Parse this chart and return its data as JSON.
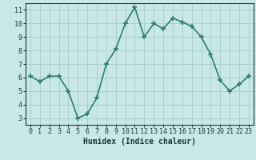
{
  "x": [
    0,
    1,
    2,
    3,
    4,
    5,
    6,
    7,
    8,
    9,
    10,
    11,
    12,
    13,
    14,
    15,
    16,
    17,
    18,
    19,
    20,
    21,
    22,
    23
  ],
  "y": [
    6.1,
    5.7,
    6.1,
    6.1,
    5.0,
    3.0,
    3.3,
    4.5,
    7.0,
    8.1,
    10.0,
    11.2,
    9.0,
    10.0,
    9.6,
    10.4,
    10.1,
    9.8,
    9.0,
    7.7,
    5.8,
    5.0,
    5.5,
    6.1
  ],
  "line_color": "#2e7d6e",
  "marker": "+",
  "bg_color": "#c8e8e8",
  "grid_color": "#aacece",
  "xlabel": "Humidex (Indice chaleur)",
  "ylim": [
    2.5,
    11.5
  ],
  "xlim": [
    -0.5,
    23.5
  ],
  "yticks": [
    3,
    4,
    5,
    6,
    7,
    8,
    9,
    10,
    11
  ],
  "xticks": [
    0,
    1,
    2,
    3,
    4,
    5,
    6,
    7,
    8,
    9,
    10,
    11,
    12,
    13,
    14,
    15,
    16,
    17,
    18,
    19,
    20,
    21,
    22,
    23
  ],
  "font_color": "#1a3a3a",
  "linewidth": 1.2,
  "markersize": 4,
  "tick_fontsize": 6.0,
  "xlabel_fontsize": 7.0
}
